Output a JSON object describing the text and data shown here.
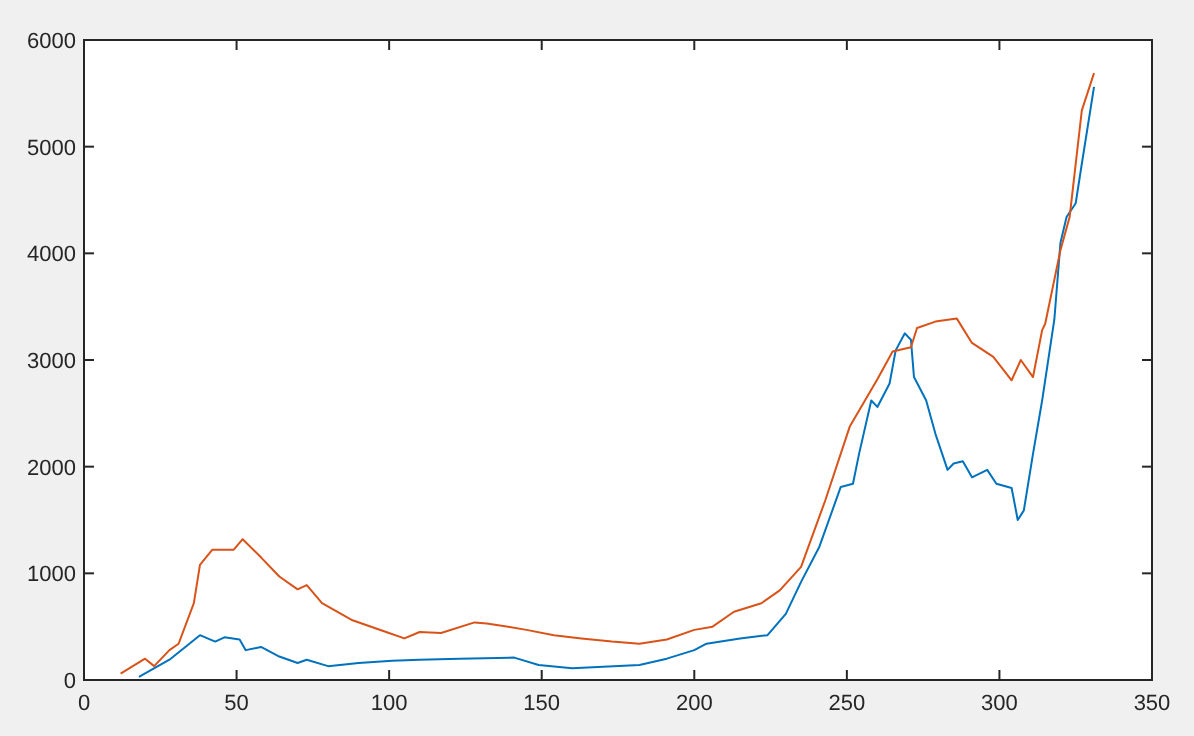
{
  "chart_data": {
    "type": "line",
    "xlim": [
      0,
      350
    ],
    "ylim": [
      0,
      6000
    ],
    "xticks": [
      0,
      50,
      100,
      150,
      200,
      250,
      300,
      350
    ],
    "yticks": [
      0,
      1000,
      2000,
      3000,
      4000,
      5000,
      6000
    ],
    "grid": false,
    "line_style": "solid",
    "marker": "none",
    "series": [
      {
        "color": "#0072bd",
        "x": [
          18,
          28,
          38,
          43,
          46,
          51,
          53,
          58,
          64,
          70,
          73,
          80,
          90,
          101,
          110,
          123,
          141,
          149,
          160,
          182,
          191,
          200,
          204,
          215,
          224,
          230,
          235,
          241,
          248,
          252,
          254,
          258,
          260,
          264,
          266,
          269,
          271,
          272,
          276,
          279,
          283,
          285,
          288,
          291,
          296,
          299,
          304,
          306,
          308,
          311,
          314,
          318,
          320,
          322,
          325,
          327,
          331
        ],
        "values": [
          30,
          190,
          420,
          360,
          400,
          380,
          280,
          310,
          220,
          160,
          190,
          130,
          160,
          180,
          190,
          200,
          210,
          140,
          110,
          140,
          200,
          280,
          340,
          390,
          420,
          620,
          920,
          1250,
          1810,
          1840,
          2120,
          2620,
          2560,
          2780,
          3090,
          3250,
          3190,
          2840,
          2620,
          2310,
          1970,
          2030,
          2050,
          1900,
          1970,
          1840,
          1800,
          1500,
          1590,
          2120,
          2620,
          3380,
          4100,
          4340,
          4470,
          4840,
          5560
        ]
      },
      {
        "color": "#d95319",
        "x": [
          12,
          20,
          23,
          28,
          31,
          36,
          38,
          42,
          46,
          49,
          52,
          58,
          64,
          70,
          73,
          78,
          88,
          99,
          105,
          110,
          117,
          128,
          132,
          139,
          145,
          154,
          163,
          173,
          182,
          191,
          200,
          206,
          213,
          222,
          228,
          235,
          243,
          251,
          260,
          265,
          271,
          273,
          279,
          286,
          291,
          298,
          304,
          307,
          311,
          314,
          315,
          320,
          323,
          327,
          331
        ],
        "values": [
          60,
          200,
          130,
          280,
          340,
          720,
          1080,
          1220,
          1220,
          1220,
          1320,
          1150,
          970,
          850,
          890,
          720,
          560,
          450,
          390,
          450,
          440,
          540,
          530,
          500,
          470,
          420,
          390,
          360,
          340,
          380,
          470,
          500,
          640,
          720,
          840,
          1060,
          1690,
          2380,
          2820,
          3080,
          3120,
          3300,
          3360,
          3390,
          3160,
          3030,
          2810,
          3000,
          2840,
          3280,
          3340,
          4030,
          4340,
          5340,
          5690
        ]
      }
    ]
  }
}
